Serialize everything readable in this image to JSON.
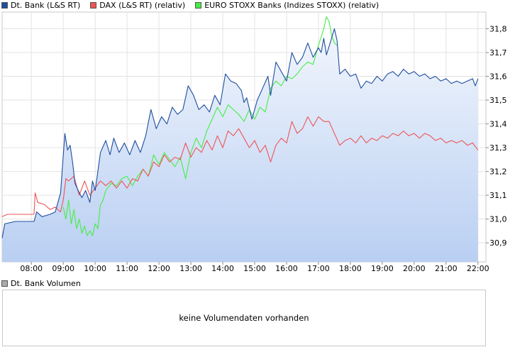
{
  "legend": {
    "series": [
      {
        "label": "Dt. Bank (L&S RT)",
        "color": "#1f4e9e"
      },
      {
        "label": "DAX (L&S RT) (relativ)",
        "color": "#ee5555"
      },
      {
        "label": "EURO STOXX Banks (Indizes STOXX) (relativ)",
        "color": "#44ee44"
      }
    ]
  },
  "volume": {
    "legend_label": "Dt. Bank Volumen",
    "legend_color": "#aaaaaa",
    "message": "keine Volumendaten vorhanden"
  },
  "chart_data": {
    "type": "line",
    "x_unit": "time of day",
    "x_ticks": [
      "08:00",
      "09:00",
      "10:00",
      "11:00",
      "12:00",
      "13:00",
      "14:00",
      "15:00",
      "16:00",
      "17:00",
      "18:00",
      "19:00",
      "20:00",
      "21:00",
      "22:00"
    ],
    "y_ticks": [
      "30,9",
      "31,0",
      "31,1",
      "31,2",
      "31,3",
      "31,4",
      "31,5",
      "31,6",
      "31,7",
      "31,8"
    ],
    "ylim": [
      30.82,
      31.87
    ],
    "xlim": [
      "07:05",
      "22:15"
    ],
    "grid": true,
    "series": [
      {
        "name": "Dt. Bank (L&S RT)",
        "color": "#1f4e9e",
        "fill": true,
        "points": [
          [
            "07:05",
            30.92
          ],
          [
            "07:10",
            30.98
          ],
          [
            "07:30",
            30.99
          ],
          [
            "07:50",
            30.99
          ],
          [
            "08:05",
            30.99
          ],
          [
            "08:10",
            31.03
          ],
          [
            "08:20",
            31.01
          ],
          [
            "08:35",
            31.02
          ],
          [
            "08:45",
            31.03
          ],
          [
            "08:55",
            31.11
          ],
          [
            "09:03",
            31.36
          ],
          [
            "09:08",
            31.29
          ],
          [
            "09:13",
            31.31
          ],
          [
            "09:18",
            31.23
          ],
          [
            "09:22",
            31.15
          ],
          [
            "09:28",
            31.12
          ],
          [
            "09:35",
            31.09
          ],
          [
            "09:42",
            31.12
          ],
          [
            "09:50",
            31.07
          ],
          [
            "09:55",
            31.16
          ],
          [
            "10:00",
            31.12
          ],
          [
            "10:10",
            31.28
          ],
          [
            "10:20",
            31.33
          ],
          [
            "10:28",
            31.27
          ],
          [
            "10:35",
            31.34
          ],
          [
            "10:45",
            31.28
          ],
          [
            "10:55",
            31.32
          ],
          [
            "11:05",
            31.27
          ],
          [
            "11:15",
            31.33
          ],
          [
            "11:25",
            31.28
          ],
          [
            "11:35",
            31.35
          ],
          [
            "11:45",
            31.46
          ],
          [
            "11:55",
            31.38
          ],
          [
            "12:05",
            31.43
          ],
          [
            "12:15",
            31.4
          ],
          [
            "12:25",
            31.47
          ],
          [
            "12:35",
            31.44
          ],
          [
            "12:45",
            31.46
          ],
          [
            "12:55",
            31.56
          ],
          [
            "13:05",
            31.52
          ],
          [
            "13:15",
            31.46
          ],
          [
            "13:25",
            31.48
          ],
          [
            "13:35",
            31.45
          ],
          [
            "13:45",
            31.52
          ],
          [
            "13:55",
            31.48
          ],
          [
            "14:05",
            31.61
          ],
          [
            "14:15",
            31.58
          ],
          [
            "14:25",
            31.57
          ],
          [
            "14:35",
            31.54
          ],
          [
            "14:40",
            31.49
          ],
          [
            "14:45",
            31.51
          ],
          [
            "14:55",
            31.42
          ],
          [
            "15:05",
            31.5
          ],
          [
            "15:15",
            31.55
          ],
          [
            "15:25",
            31.6
          ],
          [
            "15:30",
            31.52
          ],
          [
            "15:40",
            31.66
          ],
          [
            "15:50",
            31.62
          ],
          [
            "16:00",
            31.58
          ],
          [
            "16:10",
            31.7
          ],
          [
            "16:20",
            31.65
          ],
          [
            "16:30",
            31.68
          ],
          [
            "16:40",
            31.74
          ],
          [
            "16:50",
            31.68
          ],
          [
            "17:00",
            31.72
          ],
          [
            "17:05",
            31.7
          ],
          [
            "17:10",
            31.76
          ],
          [
            "17:15",
            31.69
          ],
          [
            "17:22",
            31.74
          ],
          [
            "17:30",
            31.8
          ],
          [
            "17:35",
            31.75
          ],
          [
            "17:40",
            31.61
          ],
          [
            "17:50",
            31.63
          ],
          [
            "18:00",
            31.6
          ],
          [
            "18:10",
            31.61
          ],
          [
            "18:20",
            31.55
          ],
          [
            "18:30",
            31.58
          ],
          [
            "18:40",
            31.57
          ],
          [
            "18:50",
            31.6
          ],
          [
            "19:00",
            31.58
          ],
          [
            "19:10",
            31.61
          ],
          [
            "19:20",
            31.62
          ],
          [
            "19:30",
            31.6
          ],
          [
            "19:40",
            31.63
          ],
          [
            "19:50",
            31.61
          ],
          [
            "20:00",
            31.62
          ],
          [
            "20:10",
            31.6
          ],
          [
            "20:20",
            31.61
          ],
          [
            "20:30",
            31.59
          ],
          [
            "20:40",
            31.6
          ],
          [
            "20:50",
            31.58
          ],
          [
            "21:00",
            31.59
          ],
          [
            "21:10",
            31.57
          ],
          [
            "21:20",
            31.58
          ],
          [
            "21:30",
            31.57
          ],
          [
            "21:40",
            31.58
          ],
          [
            "21:50",
            31.59
          ],
          [
            "21:55",
            31.56
          ],
          [
            "22:00",
            31.59
          ]
        ]
      },
      {
        "name": "DAX (L&S RT) (relativ)",
        "color": "#ee5555",
        "fill": false,
        "points": [
          [
            "07:05",
            31.01
          ],
          [
            "07:15",
            31.02
          ],
          [
            "07:30",
            31.02
          ],
          [
            "07:50",
            31.02
          ],
          [
            "08:05",
            31.02
          ],
          [
            "08:07",
            31.11
          ],
          [
            "08:12",
            31.07
          ],
          [
            "08:25",
            31.06
          ],
          [
            "08:35",
            31.04
          ],
          [
            "08:45",
            31.05
          ],
          [
            "08:55",
            31.03
          ],
          [
            "09:00",
            31.08
          ],
          [
            "09:05",
            31.17
          ],
          [
            "09:10",
            31.16
          ],
          [
            "09:20",
            31.18
          ],
          [
            "09:30",
            31.1
          ],
          [
            "09:40",
            31.16
          ],
          [
            "09:50",
            31.1
          ],
          [
            "10:00",
            31.13
          ],
          [
            "10:10",
            31.16
          ],
          [
            "10:20",
            31.14
          ],
          [
            "10:30",
            31.16
          ],
          [
            "10:40",
            31.13
          ],
          [
            "10:50",
            31.16
          ],
          [
            "11:00",
            31.13
          ],
          [
            "11:10",
            31.17
          ],
          [
            "11:20",
            31.16
          ],
          [
            "11:30",
            31.21
          ],
          [
            "11:40",
            31.18
          ],
          [
            "11:50",
            31.24
          ],
          [
            "12:00",
            31.22
          ],
          [
            "12:10",
            31.27
          ],
          [
            "12:20",
            31.24
          ],
          [
            "12:30",
            31.26
          ],
          [
            "12:40",
            31.25
          ],
          [
            "12:50",
            31.32
          ],
          [
            "13:00",
            31.26
          ],
          [
            "13:10",
            31.3
          ],
          [
            "13:20",
            31.28
          ],
          [
            "13:30",
            31.33
          ],
          [
            "13:40",
            31.29
          ],
          [
            "13:50",
            31.35
          ],
          [
            "14:00",
            31.3
          ],
          [
            "14:10",
            31.37
          ],
          [
            "14:20",
            31.35
          ],
          [
            "14:30",
            31.38
          ],
          [
            "14:40",
            31.34
          ],
          [
            "14:50",
            31.3
          ],
          [
            "15:00",
            31.33
          ],
          [
            "15:10",
            31.28
          ],
          [
            "15:20",
            31.31
          ],
          [
            "15:30",
            31.24
          ],
          [
            "15:40",
            31.31
          ],
          [
            "15:50",
            31.34
          ],
          [
            "16:00",
            31.32
          ],
          [
            "16:10",
            31.41
          ],
          [
            "16:20",
            31.36
          ],
          [
            "16:30",
            31.38
          ],
          [
            "16:40",
            31.43
          ],
          [
            "16:50",
            31.39
          ],
          [
            "17:00",
            31.43
          ],
          [
            "17:10",
            31.41
          ],
          [
            "17:20",
            31.41
          ],
          [
            "17:30",
            31.36
          ],
          [
            "17:40",
            31.31
          ],
          [
            "17:50",
            31.33
          ],
          [
            "18:00",
            31.34
          ],
          [
            "18:10",
            31.32
          ],
          [
            "18:20",
            31.35
          ],
          [
            "18:30",
            31.32
          ],
          [
            "18:40",
            31.34
          ],
          [
            "18:50",
            31.33
          ],
          [
            "19:00",
            31.35
          ],
          [
            "19:10",
            31.34
          ],
          [
            "19:20",
            31.36
          ],
          [
            "19:30",
            31.35
          ],
          [
            "19:40",
            31.37
          ],
          [
            "19:50",
            31.35
          ],
          [
            "20:00",
            31.36
          ],
          [
            "20:10",
            31.34
          ],
          [
            "20:20",
            31.36
          ],
          [
            "20:30",
            31.35
          ],
          [
            "20:40",
            31.33
          ],
          [
            "20:50",
            31.34
          ],
          [
            "21:00",
            31.32
          ],
          [
            "21:10",
            31.33
          ],
          [
            "21:20",
            31.32
          ],
          [
            "21:30",
            31.33
          ],
          [
            "21:40",
            31.31
          ],
          [
            "21:50",
            31.32
          ],
          [
            "22:00",
            31.29
          ]
        ]
      },
      {
        "name": "EURO STOXX Banks (Indizes STOXX) (relativ)",
        "color": "#44ee44",
        "fill": false,
        "points": [
          [
            "09:00",
            31.05
          ],
          [
            "09:05",
            31.0
          ],
          [
            "09:10",
            31.08
          ],
          [
            "09:15",
            30.98
          ],
          [
            "09:20",
            31.04
          ],
          [
            "09:25",
            30.96
          ],
          [
            "09:30",
            31.0
          ],
          [
            "09:35",
            30.94
          ],
          [
            "09:40",
            30.97
          ],
          [
            "09:45",
            30.93
          ],
          [
            "09:50",
            30.95
          ],
          [
            "09:55",
            30.93
          ],
          [
            "10:00",
            30.98
          ],
          [
            "10:05",
            30.96
          ],
          [
            "10:10",
            31.06
          ],
          [
            "10:15",
            31.08
          ],
          [
            "10:20",
            31.12
          ],
          [
            "10:30",
            31.15
          ],
          [
            "10:40",
            31.14
          ],
          [
            "10:50",
            31.17
          ],
          [
            "11:00",
            31.18
          ],
          [
            "11:10",
            31.14
          ],
          [
            "11:20",
            31.18
          ],
          [
            "11:30",
            31.21
          ],
          [
            "11:40",
            31.18
          ],
          [
            "11:50",
            31.27
          ],
          [
            "12:00",
            31.23
          ],
          [
            "12:10",
            31.28
          ],
          [
            "12:20",
            31.25
          ],
          [
            "12:30",
            31.22
          ],
          [
            "12:40",
            31.26
          ],
          [
            "12:50",
            31.17
          ],
          [
            "13:00",
            31.28
          ],
          [
            "13:10",
            31.34
          ],
          [
            "13:20",
            31.3
          ],
          [
            "13:30",
            31.37
          ],
          [
            "13:40",
            31.42
          ],
          [
            "13:50",
            31.47
          ],
          [
            "14:00",
            31.43
          ],
          [
            "14:10",
            31.48
          ],
          [
            "14:20",
            31.46
          ],
          [
            "14:30",
            31.44
          ],
          [
            "14:40",
            31.41
          ],
          [
            "14:50",
            31.46
          ],
          [
            "15:00",
            31.42
          ],
          [
            "15:10",
            31.47
          ],
          [
            "15:20",
            31.45
          ],
          [
            "15:30",
            31.55
          ],
          [
            "15:40",
            31.58
          ],
          [
            "15:50",
            31.56
          ],
          [
            "16:00",
            31.6
          ],
          [
            "16:10",
            31.59
          ],
          [
            "16:20",
            31.61
          ],
          [
            "16:30",
            31.64
          ],
          [
            "16:40",
            31.66
          ],
          [
            "16:50",
            31.65
          ],
          [
            "17:00",
            31.73
          ],
          [
            "17:10",
            31.8
          ],
          [
            "17:15",
            31.85
          ],
          [
            "17:20",
            31.83
          ],
          [
            "17:25",
            31.77
          ],
          [
            "17:30",
            31.74
          ],
          [
            "17:35",
            31.73
          ]
        ]
      }
    ]
  }
}
